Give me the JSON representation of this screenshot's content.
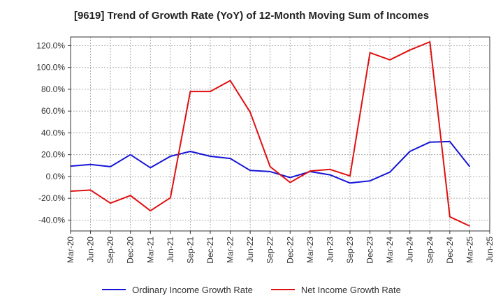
{
  "chart_data": {
    "type": "line",
    "title": "[9619]  Trend of Growth Rate (YoY) of 12-Month Moving Sum of Incomes",
    "xlabel": "",
    "ylabel": "",
    "categories": [
      "Mar-20",
      "Jun-20",
      "Sep-20",
      "Dec-20",
      "Mar-21",
      "Jun-21",
      "Sep-21",
      "Dec-21",
      "Mar-22",
      "Jun-22",
      "Sep-22",
      "Dec-22",
      "Mar-23",
      "Jun-23",
      "Sep-23",
      "Dec-23",
      "Mar-24",
      "Jun-24",
      "Sep-24",
      "Dec-24",
      "Mar-25",
      "Jun-25"
    ],
    "ylim": [
      -50,
      128
    ],
    "yticks": [
      -40,
      -20,
      0,
      20,
      40,
      60,
      80,
      100,
      120
    ],
    "ytick_labels": [
      "-40.0%",
      "-20.0%",
      "0.0%",
      "20.0%",
      "40.0%",
      "60.0%",
      "80.0%",
      "100.0%",
      "120.0%"
    ],
    "grid": true,
    "legend_position": "bottom",
    "series": [
      {
        "name": "Ordinary Income Growth Rate",
        "color": "#1515d6",
        "values": [
          9.5,
          11,
          9,
          20,
          8,
          18.5,
          23,
          18.5,
          16.5,
          5.5,
          4.5,
          -1,
          4.5,
          1.5,
          -6,
          -4,
          4,
          23,
          31.5,
          32,
          9,
          null
        ]
      },
      {
        "name": "Net Income Growth Rate",
        "color": "#e01010",
        "values": [
          -13.5,
          -12.5,
          -24.5,
          -17.5,
          -31.5,
          -19.5,
          78,
          78,
          88,
          59,
          9,
          -5.5,
          5,
          6.5,
          0.5,
          113.5,
          107,
          116,
          123.5,
          -37,
          -45.5,
          null
        ]
      }
    ]
  }
}
